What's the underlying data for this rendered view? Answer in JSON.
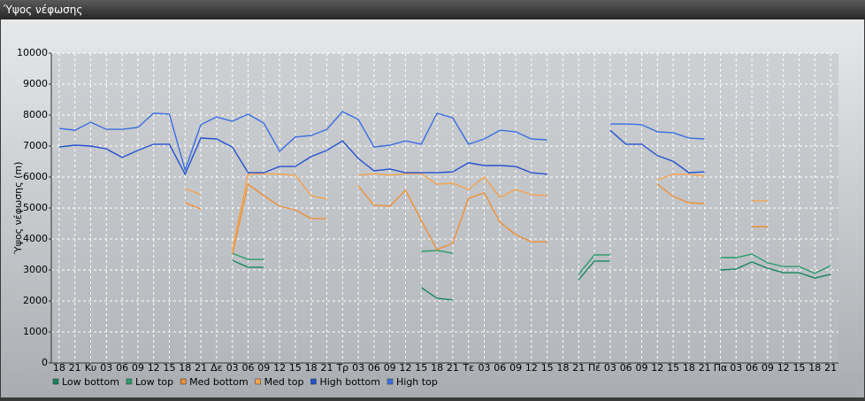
{
  "chart_data": {
    "type": "line",
    "title": "Ύψος νέφωσης",
    "y_label": "Ύψος νέφωσης (m)",
    "categories": [
      "18",
      "21",
      "Κυ",
      "03",
      "06",
      "09",
      "12",
      "15",
      "18",
      "21",
      "Δε",
      "03",
      "06",
      "09",
      "12",
      "15",
      "18",
      "21",
      "Τρ",
      "03",
      "06",
      "09",
      "12",
      "15",
      "18",
      "21",
      "Τε",
      "03",
      "06",
      "09",
      "12",
      "15",
      "18",
      "21",
      "Πέ",
      "03",
      "06",
      "09",
      "12",
      "15",
      "18",
      "21",
      "Πα",
      "03",
      "06",
      "09",
      "12",
      "15",
      "18",
      "21"
    ],
    "ylim": [
      0,
      10000
    ],
    "yticks": [
      0,
      1000,
      2000,
      3000,
      4000,
      5000,
      6000,
      7000,
      8000,
      9000,
      10000
    ],
    "grid": true,
    "series": [
      {
        "name": "Low bottom",
        "color": "#16865a",
        "values": [
          null,
          null,
          null,
          null,
          null,
          null,
          null,
          null,
          null,
          null,
          null,
          3310,
          3090,
          3090,
          null,
          null,
          null,
          null,
          null,
          null,
          null,
          null,
          null,
          2430,
          2090,
          2030,
          null,
          null,
          null,
          null,
          null,
          null,
          null,
          2690,
          3290,
          3290,
          null,
          null,
          null,
          null,
          null,
          null,
          3000,
          3030,
          3260,
          3060,
          2910,
          2910,
          2740,
          2860
        ]
      },
      {
        "name": "Low top",
        "color": "#2a9c6a",
        "values": [
          null,
          null,
          null,
          null,
          null,
          null,
          null,
          null,
          null,
          null,
          null,
          3540,
          3340,
          3340,
          null,
          null,
          null,
          null,
          null,
          null,
          null,
          null,
          null,
          3600,
          3630,
          3540,
          null,
          null,
          null,
          null,
          null,
          null,
          null,
          2860,
          3490,
          3490,
          null,
          null,
          null,
          null,
          null,
          null,
          3400,
          3400,
          3510,
          3230,
          3110,
          3110,
          2890,
          3140
        ]
      },
      {
        "name": "Med bottom",
        "color": "#ee9038",
        "values": [
          null,
          null,
          null,
          null,
          null,
          null,
          null,
          null,
          5170,
          4970,
          null,
          3510,
          5770,
          5400,
          5060,
          4940,
          4660,
          4660,
          null,
          5710,
          5090,
          5060,
          5570,
          4600,
          3660,
          3860,
          5310,
          5490,
          4540,
          4140,
          3910,
          3910,
          null,
          null,
          null,
          null,
          null,
          null,
          5770,
          5370,
          5170,
          5140,
          null,
          null,
          4400,
          4400,
          null,
          null,
          null,
          null
        ]
      },
      {
        "name": "Med top",
        "color": "#f4a34e",
        "values": [
          null,
          null,
          null,
          null,
          null,
          null,
          null,
          null,
          5630,
          5430,
          null,
          3630,
          6090,
          6110,
          6090,
          6060,
          5400,
          5290,
          null,
          6060,
          6110,
          6060,
          6110,
          6110,
          5770,
          5800,
          5600,
          6000,
          5340,
          5600,
          5430,
          5400,
          null,
          null,
          null,
          null,
          null,
          null,
          5910,
          6090,
          6090,
          6030,
          null,
          null,
          5230,
          5230,
          null,
          null,
          null,
          null
        ]
      },
      {
        "name": "High bottom",
        "color": "#2452d0",
        "values": [
          6970,
          7030,
          7000,
          6910,
          6630,
          6860,
          7060,
          7060,
          6090,
          7260,
          7230,
          6970,
          6140,
          6140,
          6340,
          6340,
          6660,
          6860,
          7170,
          6600,
          6200,
          6260,
          6140,
          6140,
          6140,
          6170,
          6460,
          6370,
          6370,
          6340,
          6140,
          6090,
          null,
          null,
          null,
          7510,
          7060,
          7060,
          6690,
          6510,
          6140,
          6170,
          null,
          null,
          null,
          null,
          null,
          null,
          null,
          null
        ]
      },
      {
        "name": "High top",
        "color": "#3b6ee2",
        "values": [
          7570,
          7510,
          7770,
          7540,
          7540,
          7600,
          8060,
          8030,
          6230,
          7690,
          7940,
          7800,
          8030,
          7740,
          6830,
          7290,
          7340,
          7540,
          8110,
          7860,
          6970,
          7030,
          7170,
          7060,
          8060,
          7910,
          7060,
          7230,
          7510,
          7460,
          7230,
          7200,
          null,
          null,
          null,
          7710,
          7710,
          7690,
          7460,
          7430,
          7260,
          7230,
          null,
          null,
          null,
          null,
          null,
          null,
          null,
          null
        ]
      }
    ]
  }
}
